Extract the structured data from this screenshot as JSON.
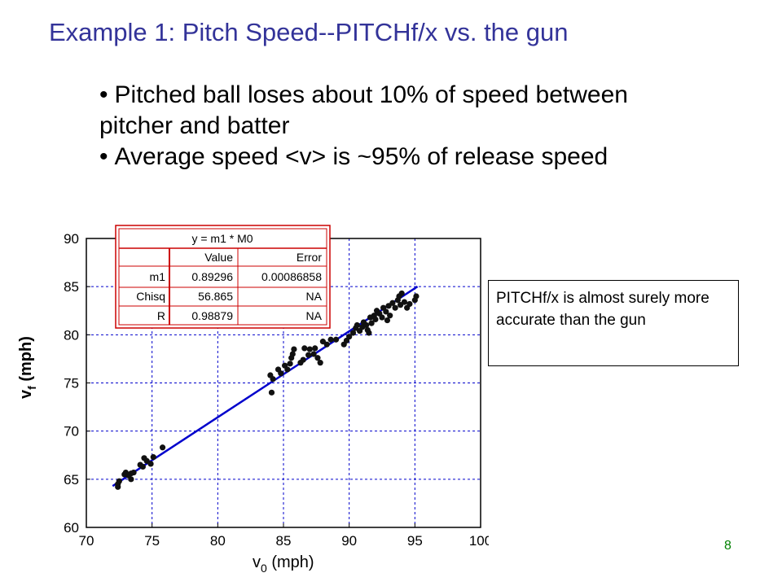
{
  "title": "Example 1:  Pitch Speed--PITCHf/x vs. the gun",
  "bullets": [
    "Pitched ball loses about 10% of speed between pitcher and batter",
    "Average speed <v> is ~95% of release speed"
  ],
  "note": "PITCHf/x is almost surely more accurate than the gun",
  "page_number": "8",
  "colors": {
    "title": "#333399",
    "fit_line": "#0000cc",
    "grid": "#0000cc",
    "fit_box": "#cc0000",
    "page_number": "#008000"
  },
  "fit_table": {
    "equation": "y = m1 * M0",
    "headers": [
      "",
      "Value",
      "Error"
    ],
    "rows": [
      [
        "m1",
        "0.89296",
        "0.00086858"
      ],
      [
        "Chisq",
        "56.865",
        "NA"
      ],
      [
        "R",
        "0.98879",
        "NA"
      ]
    ]
  },
  "chart_data": {
    "type": "scatter",
    "xlabel_main": "v",
    "xlabel_sub": "0",
    "xlabel_unit": " (mph)",
    "ylabel_main": "v",
    "ylabel_sub": "f",
    "ylabel_unit": " (mph)",
    "xlim": [
      70,
      100
    ],
    "ylim": [
      60,
      90
    ],
    "xticks": [
      "70",
      "75",
      "80",
      "85",
      "90",
      "95",
      "100"
    ],
    "yticks": [
      "60",
      "65",
      "70",
      "75",
      "80",
      "85",
      "90"
    ],
    "grid": true,
    "fit": {
      "slope": 0.89296,
      "x_range": [
        72,
        95.2
      ]
    },
    "points": [
      [
        72.4,
        64.2
      ],
      [
        72.4,
        64.5
      ],
      [
        72.5,
        64.8
      ],
      [
        72.9,
        65.5
      ],
      [
        73.0,
        65.7
      ],
      [
        73.2,
        65.4
      ],
      [
        73.4,
        65.0
      ],
      [
        73.4,
        65.6
      ],
      [
        73.6,
        65.7
      ],
      [
        74.1,
        66.5
      ],
      [
        74.3,
        66.3
      ],
      [
        74.4,
        67.2
      ],
      [
        74.6,
        66.9
      ],
      [
        74.9,
        66.6
      ],
      [
        75.1,
        67.3
      ],
      [
        75.8,
        68.3
      ],
      [
        84.0,
        75.8
      ],
      [
        84.1,
        74.0
      ],
      [
        84.2,
        75.4
      ],
      [
        84.6,
        76.4
      ],
      [
        84.8,
        76.0
      ],
      [
        85.1,
        76.8
      ],
      [
        85.3,
        76.4
      ],
      [
        85.5,
        77.0
      ],
      [
        85.6,
        77.6
      ],
      [
        85.7,
        78.0
      ],
      [
        85.8,
        78.5
      ],
      [
        86.3,
        77.1
      ],
      [
        86.5,
        77.4
      ],
      [
        86.6,
        78.6
      ],
      [
        86.9,
        77.9
      ],
      [
        87.0,
        78.5
      ],
      [
        87.3,
        78.0
      ],
      [
        87.4,
        78.6
      ],
      [
        87.6,
        77.6
      ],
      [
        87.8,
        77.1
      ],
      [
        88.0,
        79.3
      ],
      [
        88.3,
        79.0
      ],
      [
        88.6,
        79.5
      ],
      [
        89.0,
        79.5
      ],
      [
        89.6,
        79.0
      ],
      [
        89.8,
        79.4
      ],
      [
        90.0,
        79.8
      ],
      [
        90.3,
        80.2
      ],
      [
        90.5,
        80.7
      ],
      [
        90.6,
        81.0
      ],
      [
        90.8,
        80.4
      ],
      [
        91.0,
        80.8
      ],
      [
        91.1,
        81.3
      ],
      [
        91.3,
        81.0
      ],
      [
        91.4,
        80.5
      ],
      [
        91.6,
        81.8
      ],
      [
        91.7,
        81.2
      ],
      [
        91.9,
        82.0
      ],
      [
        92.0,
        81.6
      ],
      [
        92.1,
        82.5
      ],
      [
        92.3,
        82.2
      ],
      [
        92.5,
        81.8
      ],
      [
        92.6,
        82.8
      ],
      [
        92.8,
        82.4
      ],
      [
        93.0,
        83.0
      ],
      [
        93.1,
        82.0
      ],
      [
        93.3,
        83.3
      ],
      [
        93.5,
        82.8
      ],
      [
        93.7,
        83.6
      ],
      [
        93.8,
        84.0
      ],
      [
        94.0,
        84.3
      ],
      [
        94.2,
        83.4
      ],
      [
        94.4,
        82.8
      ],
      [
        94.6,
        83.2
      ],
      [
        95.0,
        83.6
      ],
      [
        95.1,
        84.0
      ],
      [
        93.9,
        83.1
      ],
      [
        92.9,
        81.5
      ],
      [
        91.5,
        80.2
      ]
    ]
  }
}
